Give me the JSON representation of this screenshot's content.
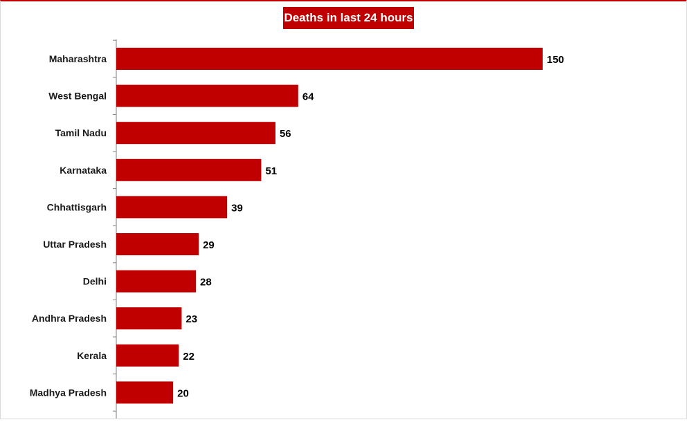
{
  "chart_data": {
    "type": "bar",
    "orientation": "horizontal",
    "title": "Deaths in last 24 hours",
    "categories": [
      "Maharashtra",
      "West Bengal",
      "Tamil Nadu",
      "Karnataka",
      "Chhattisgarh",
      "Uttar Pradesh",
      "Delhi",
      "Andhra Pradesh",
      "Kerala",
      "Madhya Pradesh"
    ],
    "values": [
      150,
      64,
      56,
      51,
      39,
      29,
      28,
      23,
      22,
      20
    ],
    "xlim": [
      0,
      150
    ],
    "grid": false,
    "legend": "none",
    "bar_color": "#c00000",
    "title_bg_color": "#c00000"
  }
}
